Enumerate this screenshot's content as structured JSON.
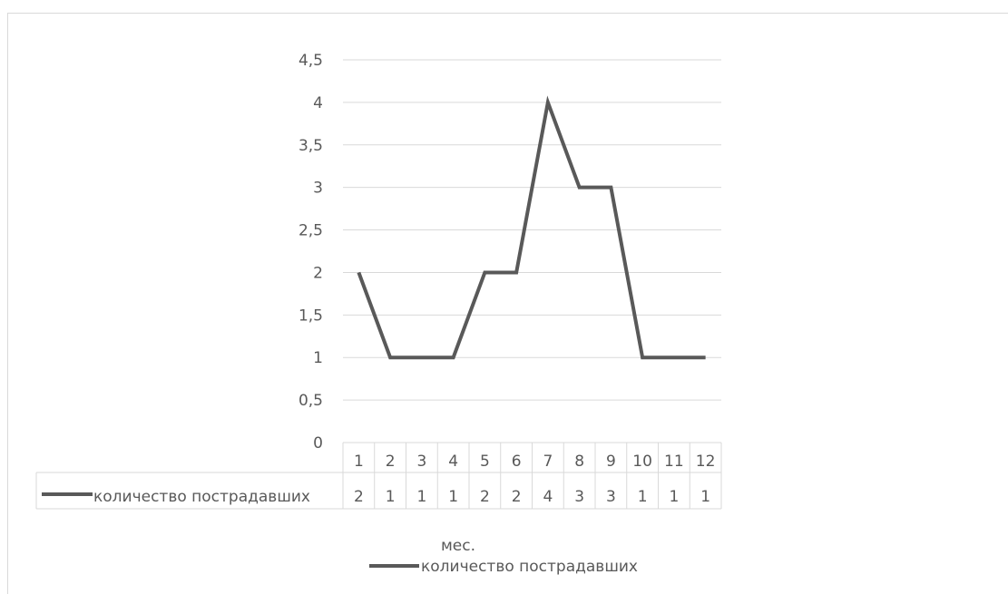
{
  "chart_data": {
    "type": "line",
    "x": [
      "1",
      "2",
      "3",
      "4",
      "5",
      "6",
      "7",
      "8",
      "9",
      "10",
      "11",
      "12"
    ],
    "series": [
      {
        "name": "количество пострадавших",
        "values": [
          2,
          1,
          1,
          1,
          2,
          2,
          4,
          3,
          3,
          1,
          1,
          1
        ]
      }
    ],
    "ylim": [
      0,
      4.5
    ],
    "y_ticks": [
      "0",
      "0,5",
      "1",
      "1,5",
      "2",
      "2,5",
      "3",
      "3,5",
      "4",
      "4,5"
    ],
    "y_tick_values": [
      0,
      0.5,
      1,
      1.5,
      2,
      2.5,
      3,
      3.5,
      4,
      4.5
    ],
    "xlabel": "мес.",
    "ylabel": "",
    "title": "",
    "grid": true,
    "legend": "bottom",
    "data_table": true,
    "colors": {
      "series": "#595959",
      "grid": "#d9d9d9",
      "text": "#595959"
    }
  }
}
